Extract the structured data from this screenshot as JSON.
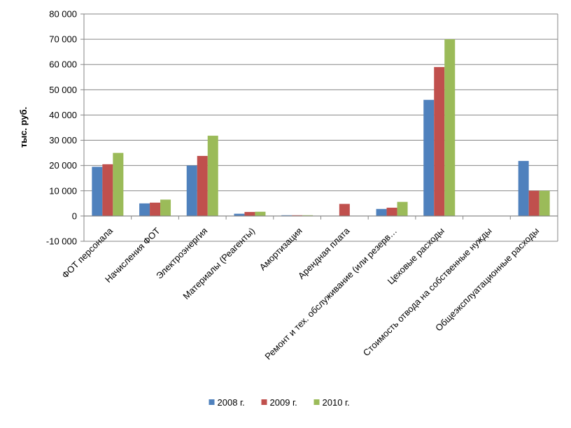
{
  "chart_data": {
    "type": "bar",
    "title": "",
    "xlabel": "",
    "ylabel": "тыс. руб.",
    "ylim": [
      -10000,
      80000
    ],
    "ytick_step": 10000,
    "yticks": [
      "-10 000",
      "0",
      "10 000",
      "20 000",
      "30 000",
      "40 000",
      "50 000",
      "60 000",
      "70 000",
      "80 000"
    ],
    "grid": true,
    "legend_position": "bottom",
    "categories": [
      "ФОТ персонала",
      "Начисления ФОТ",
      "Электроэнергия",
      "Материалы (Реагенты)",
      "Амортизация",
      "Арендная плата",
      "Ремонт и тех. обслуживание (или резерв…",
      "Цеховые расходы",
      "Стоимость отвода на собственные нужды",
      "Общеэксплуатационные расходы"
    ],
    "series": [
      {
        "name": "2008 г.",
        "color": "#4F81BD",
        "values": [
          19500,
          5000,
          20000,
          900,
          300,
          0,
          2800,
          46000,
          0,
          21800
        ]
      },
      {
        "name": "2009 г.",
        "color": "#C0504D",
        "values": [
          20500,
          5300,
          23800,
          1600,
          300,
          4800,
          3300,
          59000,
          0,
          10000
        ]
      },
      {
        "name": "2010 г.",
        "color": "#9BBB59",
        "values": [
          25000,
          6500,
          31800,
          1700,
          300,
          0,
          5600,
          70000,
          0,
          10000
        ]
      }
    ]
  }
}
